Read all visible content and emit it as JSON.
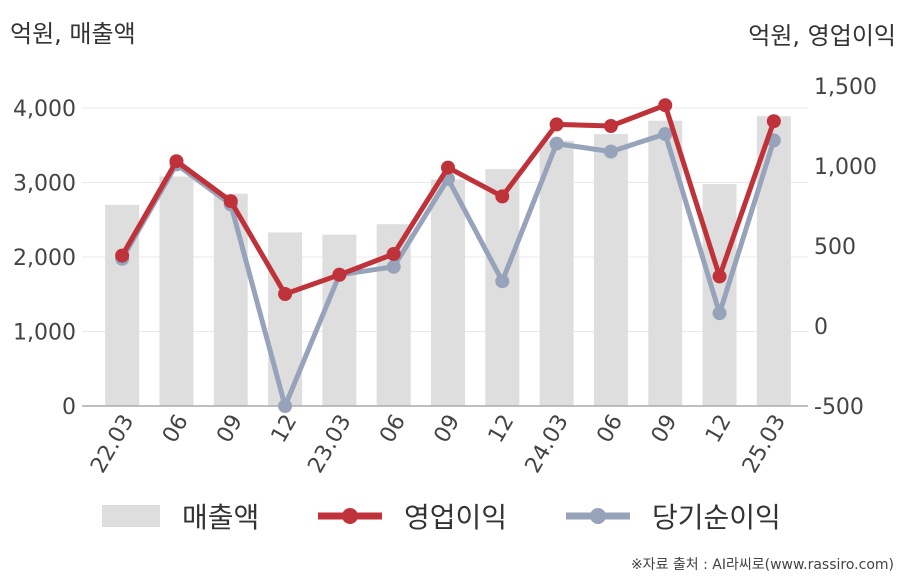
{
  "titles": {
    "left_axis": "억원, 매출액",
    "right_axis": "억원, 영업이익"
  },
  "source": "※자료 출처 : AI라씨로(www.rassiro.com)",
  "colors": {
    "revenue": "#dedede",
    "operating_profit": "#c0323a",
    "net_income": "#97a3ba"
  },
  "chart_data": {
    "type": "bar",
    "categories": [
      "22.03",
      "06",
      "09",
      "12",
      "23.03",
      "06",
      "09",
      "12",
      "24.03",
      "06",
      "09",
      "12",
      "25.03"
    ],
    "series": [
      {
        "name": "매출액",
        "type": "bar",
        "axis": "left",
        "values": [
          2700,
          3080,
          2850,
          2330,
          2300,
          2440,
          3040,
          3180,
          3560,
          3650,
          3830,
          2980,
          3890
        ]
      },
      {
        "name": "영업이익",
        "type": "line",
        "axis": "right",
        "values": [
          440,
          1030,
          780,
          200,
          320,
          450,
          990,
          810,
          1260,
          1250,
          1380,
          310,
          1280
        ]
      },
      {
        "name": "당기순이익",
        "type": "line",
        "axis": "right",
        "values": [
          420,
          1010,
          760,
          -500,
          320,
          370,
          920,
          280,
          1140,
          1090,
          1200,
          80,
          1160
        ]
      }
    ],
    "y_left": {
      "min": 0,
      "max": 4000,
      "ticks": [
        "0",
        "1,000",
        "2,000",
        "3,000",
        "4,000"
      ]
    },
    "y_right": {
      "min": -500,
      "max": 1500,
      "ticks": [
        "-500",
        "0",
        "500",
        "1,000",
        "1,500"
      ]
    },
    "grid": true,
    "legend": "bottom"
  }
}
